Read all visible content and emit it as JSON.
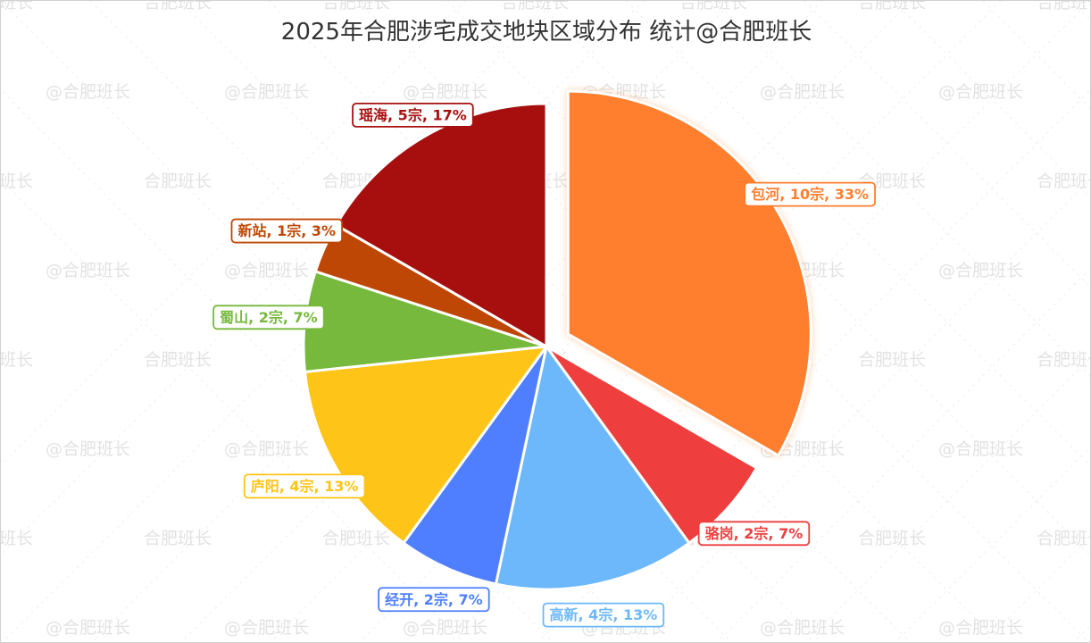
{
  "chart_data": {
    "type": "pie",
    "title": "2025年合肥涉宅成交地块区域分布  统计@合肥班长",
    "watermarks": [
      "@合肥班长",
      "合肥班长"
    ],
    "slices": [
      {
        "name": "包河",
        "count": 10,
        "percent": 33,
        "label": "包河, 10宗, 33%",
        "color": "#FF7F2F",
        "exploded": true
      },
      {
        "name": "骆岗",
        "count": 2,
        "percent": 7,
        "label": "骆岗, 2宗, 7%",
        "color": "#EE3E3E",
        "exploded": false
      },
      {
        "name": "高新",
        "count": 4,
        "percent": 13,
        "label": "高新, 4宗, 13%",
        "color": "#6DB8FB",
        "exploded": false
      },
      {
        "name": "经开",
        "count": 2,
        "percent": 7,
        "label": "经开, 2宗, 7%",
        "color": "#4F7FFF",
        "exploded": false
      },
      {
        "name": "庐阳",
        "count": 4,
        "percent": 13,
        "label": "庐阳, 4宗, 13%",
        "color": "#FFC418",
        "exploded": false
      },
      {
        "name": "蜀山",
        "count": 2,
        "percent": 7,
        "label": "蜀山, 2宗, 7%",
        "color": "#76B93C",
        "exploded": false
      },
      {
        "name": "新站",
        "count": 1,
        "percent": 3,
        "label": "新站, 1宗, 3%",
        "color": "#BF4705",
        "exploded": false
      },
      {
        "name": "瑶海",
        "count": 5,
        "percent": 17,
        "label": "瑶海, 5宗, 17%",
        "color": "#A70F0F",
        "exploded": false
      }
    ]
  }
}
